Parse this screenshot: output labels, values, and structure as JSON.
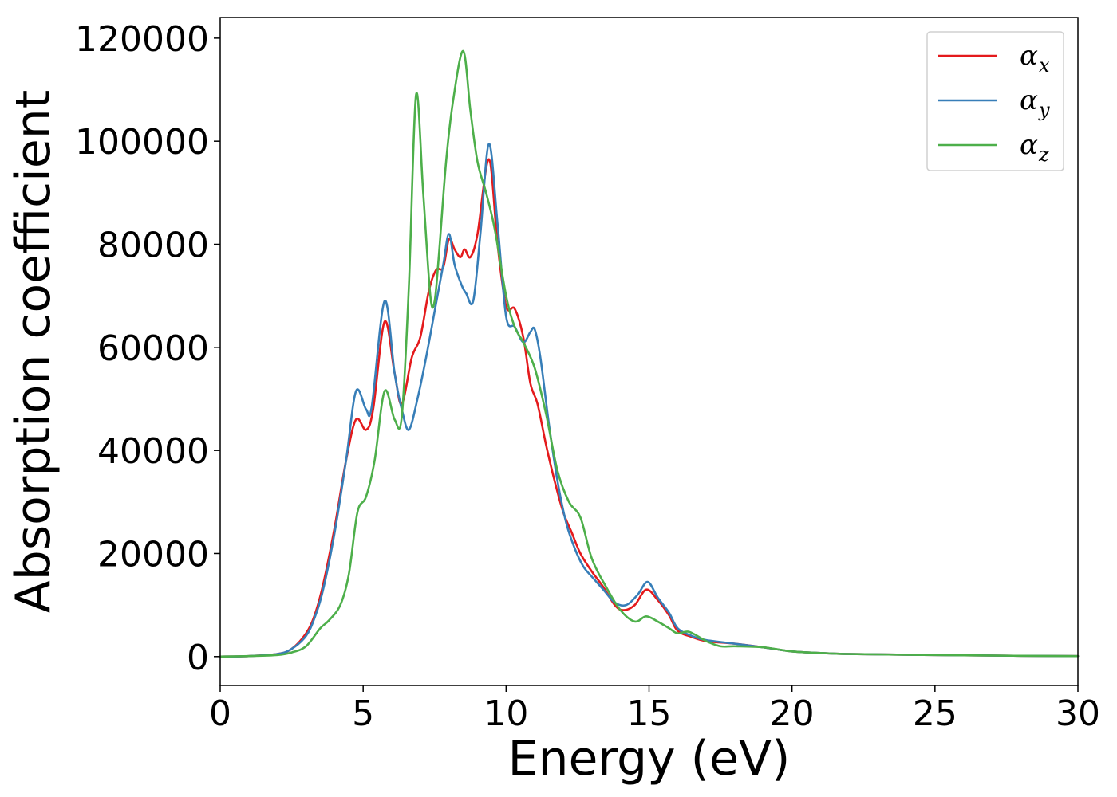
{
  "chart_data": {
    "type": "line",
    "xlabel": "Energy (eV)",
    "ylabel": "Absorption coefficient",
    "xlim": [
      0,
      30
    ],
    "ylim": [
      -5600,
      124000
    ],
    "xticks": [
      0,
      5,
      10,
      15,
      20,
      25,
      30
    ],
    "yticks": [
      0,
      20000,
      40000,
      60000,
      80000,
      100000,
      120000
    ],
    "grid": false,
    "legend_position": "top-right",
    "series": [
      {
        "name": "α_x",
        "label_base": "α",
        "label_sub": "x",
        "color": "#e41a1c",
        "x": [
          0,
          1,
          2,
          2.5,
          3,
          3.3,
          3.6,
          4,
          4.4,
          4.75,
          5.1,
          5.35,
          5.75,
          6.1,
          6.35,
          6.7,
          7.0,
          7.3,
          7.55,
          7.8,
          8.0,
          8.2,
          8.4,
          8.55,
          8.75,
          9.0,
          9.4,
          9.7,
          10.0,
          10.3,
          10.6,
          10.85,
          11.1,
          11.4,
          11.7,
          12.0,
          12.3,
          12.6,
          13.0,
          13.4,
          13.8,
          14.1,
          14.5,
          14.9,
          15.3,
          15.7,
          16.0,
          16.5,
          17.0,
          18.0,
          19.0,
          20.0,
          21.0,
          22.0,
          25.0,
          28.0,
          30.0
        ],
        "y": [
          0,
          100,
          500,
          1500,
          4500,
          8000,
          14000,
          25000,
          38000,
          46000,
          44000,
          48000,
          65000,
          55000,
          49000,
          58000,
          62000,
          71000,
          75000,
          75500,
          81000,
          79000,
          77500,
          79000,
          77500,
          82000,
          96500,
          80000,
          68000,
          67500,
          62000,
          53000,
          49000,
          41000,
          34000,
          28000,
          24000,
          20000,
          16500,
          13500,
          10000,
          9000,
          10000,
          13000,
          11000,
          8000,
          5000,
          3800,
          3000,
          2500,
          1800,
          1000,
          700,
          500,
          300,
          150,
          100
        ]
      },
      {
        "name": "α_y",
        "label_base": "α",
        "label_sub": "y",
        "color": "#377eb8",
        "x": [
          0,
          1,
          2,
          2.5,
          3,
          3.3,
          3.6,
          4,
          4.4,
          4.75,
          5.1,
          5.3,
          5.75,
          6.1,
          6.35,
          6.6,
          6.9,
          7.2,
          7.5,
          7.8,
          8.0,
          8.2,
          8.45,
          8.6,
          8.85,
          9.1,
          9.4,
          9.7,
          10.0,
          10.3,
          10.6,
          10.85,
          11.0,
          11.2,
          11.5,
          11.8,
          12.1,
          12.4,
          12.7,
          13.0,
          13.4,
          13.8,
          14.2,
          14.6,
          14.95,
          15.3,
          15.7,
          16.0,
          16.5,
          17.0,
          18.0,
          19.0,
          20.0,
          21.0,
          22.0,
          25.0,
          28.0,
          30.0
        ],
        "y": [
          0,
          100,
          500,
          1500,
          4000,
          7500,
          13000,
          24000,
          38000,
          51500,
          48000,
          48500,
          69000,
          55000,
          48000,
          44000,
          50000,
          58000,
          67000,
          76000,
          82000,
          76000,
          72000,
          70500,
          69000,
          82000,
          99500,
          84000,
          66000,
          64000,
          61000,
          63000,
          63500,
          58000,
          45000,
          34000,
          26000,
          21000,
          17500,
          15500,
          13000,
          10500,
          10000,
          12000,
          14500,
          11500,
          8500,
          5500,
          4000,
          3200,
          2500,
          1800,
          1000,
          700,
          500,
          300,
          150,
          100
        ]
      },
      {
        "name": "α_z",
        "label_base": "α",
        "label_sub": "z",
        "color": "#4daf4a",
        "x": [
          0,
          1,
          2,
          2.5,
          3,
          3.5,
          3.8,
          4.2,
          4.5,
          4.8,
          5.1,
          5.4,
          5.75,
          6.1,
          6.35,
          6.6,
          6.85,
          7.1,
          7.35,
          7.5,
          7.65,
          7.9,
          8.15,
          8.5,
          8.75,
          9.0,
          9.3,
          9.6,
          10.0,
          10.3,
          10.6,
          11.0,
          11.4,
          11.8,
          12.2,
          12.6,
          13.0,
          13.5,
          14.0,
          14.5,
          14.9,
          15.3,
          15.7,
          16.0,
          16.4,
          17.0,
          17.5,
          18.0,
          19.0,
          20.0,
          21.0,
          22.0,
          25.0,
          28.0,
          30.0
        ],
        "y": [
          0,
          100,
          300,
          800,
          2000,
          5500,
          7000,
          10000,
          16000,
          28000,
          31000,
          38000,
          51500,
          46000,
          46500,
          72000,
          109000,
          90000,
          70000,
          69000,
          78000,
          96000,
          108000,
          117500,
          106000,
          96000,
          90000,
          83000,
          70000,
          64000,
          61000,
          56000,
          47000,
          36000,
          30000,
          27000,
          19000,
          13500,
          9000,
          6800,
          7800,
          6800,
          5500,
          4500,
          4800,
          3000,
          2000,
          2000,
          1800,
          1000,
          700,
          500,
          300,
          150,
          100
        ]
      }
    ]
  }
}
